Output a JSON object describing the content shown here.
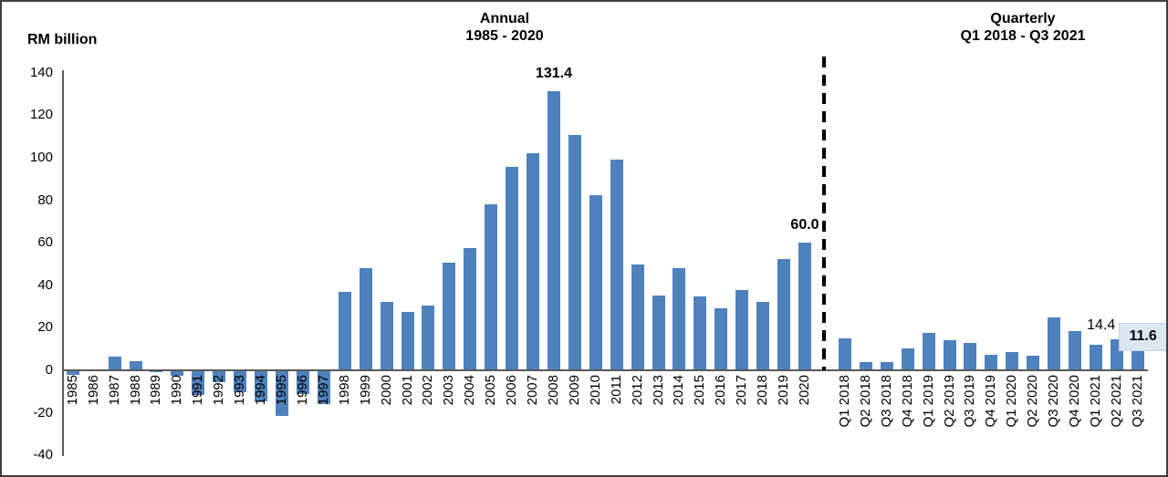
{
  "figure": {
    "y_axis_title": "RM billion"
  },
  "chart_data": {
    "type": "bar",
    "ylabel": "RM billion",
    "ylim": [
      -40,
      140
    ],
    "y_ticks": [
      140,
      120,
      100,
      80,
      60,
      40,
      20,
      0,
      -20,
      -40
    ],
    "grid": false,
    "bar_color": "#4F81BD",
    "highlight_color": "#DCE6F1",
    "sections": [
      {
        "name": "annual",
        "title": "Annual",
        "subtitle": "1985 - 2020",
        "categories": [
          "1985",
          "1986",
          "1987",
          "1988",
          "1989",
          "1990",
          "1991",
          "1992",
          "1993",
          "1994",
          "1995",
          "1996",
          "1997",
          "1998",
          "1999",
          "2000",
          "2001",
          "2002",
          "2003",
          "2004",
          "2005",
          "2006",
          "2007",
          "2008",
          "2009",
          "2010",
          "2011",
          "2012",
          "2013",
          "2014",
          "2015",
          "2016",
          "2017",
          "2018",
          "2019",
          "2020"
        ],
        "values": [
          -2,
          -0.3,
          6.5,
          4.3,
          -0.8,
          -2.5,
          -11.6,
          -5.6,
          -10.1,
          -14.8,
          -21.6,
          -11.2,
          -15.8,
          36.8,
          47.9,
          32.3,
          27.5,
          30.3,
          50.5,
          57.3,
          78.0,
          95.8,
          102.0,
          131.4,
          110.7,
          82.5,
          99.0,
          50.0,
          35.0,
          48.0,
          34.8,
          29.3,
          37.8,
          32.0,
          52.5,
          60.0
        ]
      },
      {
        "name": "quarterly",
        "title": "Quarterly",
        "subtitle": "Q1 2018 - Q3 2021",
        "categories": [
          "Q1 2018",
          "Q2 2018",
          "Q3 2018",
          "Q4 2018",
          "Q1 2019",
          "Q2 2019",
          "Q3 2019",
          "Q4 2019",
          "Q1 2020",
          "Q2 2020",
          "Q3 2020",
          "Q4 2020",
          "Q1 2021",
          "Q2 2021",
          "Q3 2021"
        ],
        "values": [
          15.0,
          3.9,
          3.8,
          10.4,
          17.5,
          14.2,
          13.0,
          7.3,
          8.6,
          6.9,
          25.0,
          18.5,
          12.0,
          14.4,
          11.6
        ]
      }
    ],
    "annotations": [
      {
        "label": "131.4",
        "section": 0,
        "category": "2008",
        "bold": true,
        "highlight": false
      },
      {
        "label": "60.0",
        "section": 0,
        "category": "2020",
        "bold": true,
        "highlight": false
      },
      {
        "label": "14.4",
        "section": 1,
        "category": "Q2 2021",
        "bold": false,
        "highlight": false
      },
      {
        "label": "11.6",
        "section": 1,
        "category": "Q3 2021",
        "bold": true,
        "highlight": true
      }
    ]
  }
}
